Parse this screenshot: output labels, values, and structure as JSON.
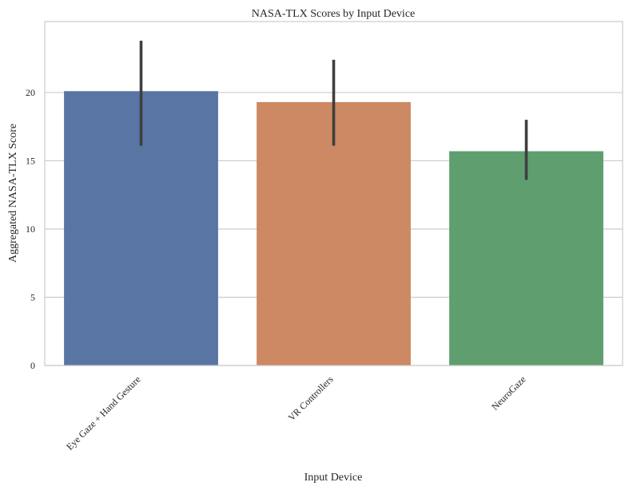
{
  "chart_data": {
    "type": "bar",
    "title": "NASA-TLX Scores by Input Device",
    "xlabel": "Input Device",
    "ylabel": "Aggregated NASA-TLX Score",
    "categories": [
      "Eye Gaze + Hand Gesture",
      "VR Controllers",
      "NeuroGaze"
    ],
    "values": [
      20.1,
      19.3,
      15.7
    ],
    "error_low": [
      16.1,
      16.1,
      13.6
    ],
    "error_high": [
      23.8,
      22.4,
      18.0
    ],
    "ylim": [
      0,
      25.2
    ],
    "yticks": [
      0,
      5,
      10,
      15,
      20
    ],
    "grid": true,
    "colors": [
      "#5875a4",
      "#cc8963",
      "#5f9e6e"
    ],
    "error_color": "#3f3f3f"
  }
}
